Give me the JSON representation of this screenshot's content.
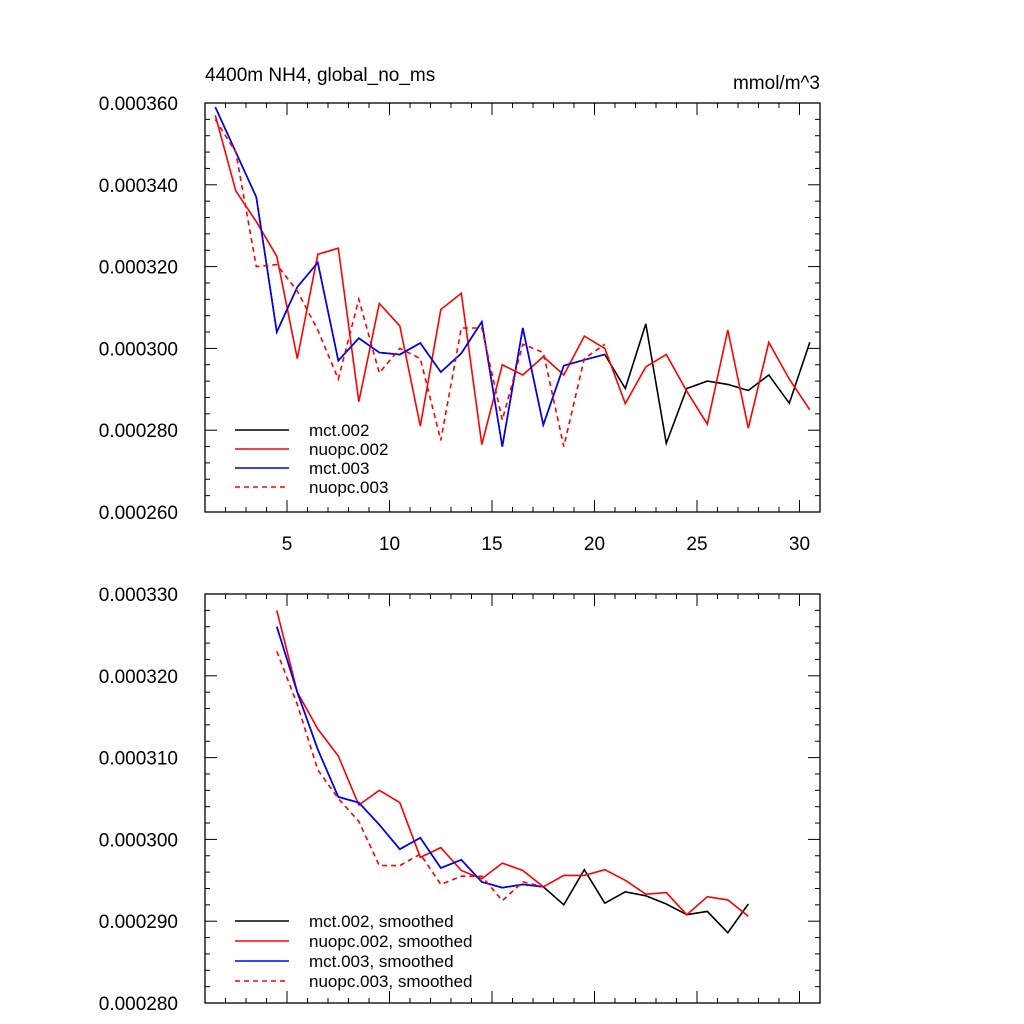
{
  "chart_data": [
    {
      "type": "line",
      "title": "4400m NH4, global_no_ms",
      "units": "mmol/m^3",
      "xlim": [
        1,
        31
      ],
      "ylim": [
        0.00026,
        0.00036
      ],
      "xticks": [
        5,
        10,
        15,
        20,
        25,
        30
      ],
      "xtick_labels": [
        "5",
        "10",
        "15",
        "20",
        "25",
        "30"
      ],
      "yticks": [
        0.00026,
        0.00028,
        0.0003,
        0.00032,
        0.00034,
        0.00036
      ],
      "ytick_labels": [
        "0.000260",
        "0.000280",
        "0.000300",
        "0.000320",
        "0.000340",
        "0.000360"
      ],
      "legend_position": "bottom-left",
      "series": [
        {
          "name": "mct.002",
          "color": "#000000",
          "dash": "solid",
          "x": [
            1.5,
            2.5,
            3.5,
            4.5,
            5.5,
            6.5,
            7.5,
            8.5,
            9.5,
            10.5,
            11.5,
            12.5,
            13.5,
            14.5,
            15.5,
            16.5,
            17.5,
            18.5,
            19.5,
            20.5,
            21.5,
            22.5,
            23.5,
            24.5,
            25.5,
            26.5,
            27.5,
            28.5,
            29.5,
            30.5
          ],
          "values": [
            0.000359,
            0.000348,
            0.000337,
            0.000304,
            0.000315,
            0.000321,
            0.000297,
            0.0003025,
            0.000299,
            0.0002985,
            0.0003013,
            0.0002942,
            0.0002988,
            0.0003065,
            0.000276,
            0.000305,
            0.0002813,
            0.0002958,
            0.0002972,
            0.0002985,
            0.0002902,
            0.000306,
            0.0002768,
            0.0002902,
            0.000292,
            0.0002912,
            0.0002897,
            0.0002935,
            0.0002866,
            0.0003015
          ]
        },
        {
          "name": "nuopc.002",
          "color": "#ff0000",
          "dash": "solid",
          "x": [
            1.5,
            2.5,
            3.5,
            4.5,
            5.5,
            6.5,
            7.5,
            8.5,
            9.5,
            10.5,
            11.5,
            12.5,
            13.5,
            14.5,
            15.5,
            16.5,
            17.5,
            18.5,
            19.5,
            20.5,
            21.5,
            22.5,
            23.5,
            24.5,
            25.5,
            26.5,
            27.5,
            28.5,
            29.5,
            30.5
          ],
          "values": [
            0.000357,
            0.0003385,
            0.000331,
            0.0003225,
            0.0002975,
            0.000323,
            0.0003245,
            0.000287,
            0.000311,
            0.0003055,
            0.000281,
            0.0003095,
            0.0003135,
            0.0002765,
            0.000296,
            0.0002935,
            0.000298,
            0.0002935,
            0.000303,
            0.0003,
            0.0002865,
            0.0002955,
            0.0002985,
            0.0002895,
            0.0002815,
            0.0003045,
            0.0002805,
            0.0003015,
            0.0002925,
            0.000285
          ]
        },
        {
          "name": "mct.003",
          "color": "#0000ff",
          "dash": "solid",
          "x": [
            1.5,
            2.5,
            3.5,
            4.5,
            5.5,
            6.5,
            7.5,
            8.5,
            9.5,
            10.5,
            11.5,
            12.5,
            13.5,
            14.5,
            15.5,
            16.5,
            17.5,
            18.5,
            19.5,
            20.5
          ],
          "values": [
            0.000359,
            0.000348,
            0.000337,
            0.000304,
            0.000315,
            0.000321,
            0.000297,
            0.0003025,
            0.000299,
            0.0002985,
            0.0003013,
            0.0002942,
            0.0002988,
            0.0003065,
            0.000276,
            0.000305,
            0.0002813,
            0.0002958,
            0.0002972,
            0.0002985
          ]
        },
        {
          "name": "nuopc.003",
          "color": "#ff0000",
          "dash": "dashed",
          "x": [
            1.5,
            2.5,
            3.5,
            4.5,
            5.5,
            6.5,
            7.5,
            8.5,
            9.5,
            10.5,
            11.5,
            12.5,
            13.5,
            14.5,
            15.5,
            16.5,
            17.5,
            18.5,
            19.5,
            20.5
          ],
          "values": [
            0.000356,
            0.000348,
            0.00032,
            0.0003205,
            0.000314,
            0.0003045,
            0.0002925,
            0.000312,
            0.000294,
            0.0003,
            0.0002975,
            0.0002775,
            0.000305,
            0.000305,
            0.0002825,
            0.000301,
            0.000299,
            0.000276,
            0.0002975,
            0.000301
          ]
        }
      ]
    },
    {
      "type": "line",
      "title": "",
      "units": "",
      "xlim": [
        1,
        31
      ],
      "ylim": [
        0.00028,
        0.00033
      ],
      "xticks": [
        5,
        10,
        15,
        20,
        25,
        30
      ],
      "xtick_labels": [],
      "yticks": [
        0.00028,
        0.00029,
        0.0003,
        0.00031,
        0.00032,
        0.00033
      ],
      "ytick_labels": [
        "0.000280",
        "0.000290",
        "0.000300",
        "0.000310",
        "0.000320",
        "0.000330"
      ],
      "legend_position": "bottom-left",
      "series": [
        {
          "name": "mct.002, smoothed",
          "color": "#000000",
          "dash": "solid",
          "x": [
            4.5,
            5.5,
            6.5,
            7.5,
            8.5,
            9.5,
            10.5,
            11.5,
            12.5,
            13.5,
            14.5,
            15.5,
            16.5,
            17.5,
            18.5,
            19.5,
            20.5,
            21.5,
            22.5,
            23.5,
            24.5,
            25.5,
            26.5,
            27.5
          ],
          "values": [
            0.000326,
            0.000318,
            0.000311,
            0.0003052,
            0.0003045,
            0.0003018,
            0.0002988,
            0.0003002,
            0.0002965,
            0.0002975,
            0.0002948,
            0.0002941,
            0.0002945,
            0.0002942,
            0.000292,
            0.0002963,
            0.0002922,
            0.0002936,
            0.0002931,
            0.0002921,
            0.0002908,
            0.0002912,
            0.0002886,
            0.0002921
          ]
        },
        {
          "name": "nuopc.002, smoothed",
          "color": "#ff0000",
          "dash": "solid",
          "x": [
            4.5,
            5.5,
            6.5,
            7.5,
            8.5,
            9.5,
            10.5,
            11.5,
            12.5,
            13.5,
            14.5,
            15.5,
            16.5,
            17.5,
            18.5,
            19.5,
            20.5,
            21.5,
            22.5,
            23.5,
            24.5,
            25.5,
            26.5,
            27.5
          ],
          "values": [
            0.000328,
            0.000318,
            0.0003135,
            0.0003102,
            0.0003042,
            0.000306,
            0.0003045,
            0.0002978,
            0.000299,
            0.0002962,
            0.0002952,
            0.0002971,
            0.0002962,
            0.0002942,
            0.0002956,
            0.0002956,
            0.0002963,
            0.000295,
            0.0002933,
            0.0002935,
            0.0002908,
            0.000293,
            0.0002926,
            0.0002906
          ]
        },
        {
          "name": "mct.003, smoothed",
          "color": "#0000ff",
          "dash": "solid",
          "x": [
            4.5,
            5.5,
            6.5,
            7.5,
            8.5,
            9.5,
            10.5,
            11.5,
            12.5,
            13.5,
            14.5,
            15.5,
            16.5,
            17.5
          ],
          "values": [
            0.000326,
            0.000318,
            0.000311,
            0.0003052,
            0.0003045,
            0.0003018,
            0.0002988,
            0.0003002,
            0.0002965,
            0.0002975,
            0.0002948,
            0.0002941,
            0.0002945,
            0.0002942
          ]
        },
        {
          "name": "nuopc.003, smoothed",
          "color": "#ff0000",
          "dash": "dashed",
          "x": [
            4.5,
            5.5,
            6.5,
            7.5,
            8.5,
            9.5,
            10.5,
            11.5,
            12.5,
            13.5,
            14.5,
            15.5,
            16.5,
            17.5
          ],
          "values": [
            0.000323,
            0.0003165,
            0.0003085,
            0.000305,
            0.0003022,
            0.0002968,
            0.0002968,
            0.0002982,
            0.0002945,
            0.0002955,
            0.0002955,
            0.0002925,
            0.0002948,
            0.0002942
          ]
        }
      ]
    }
  ]
}
